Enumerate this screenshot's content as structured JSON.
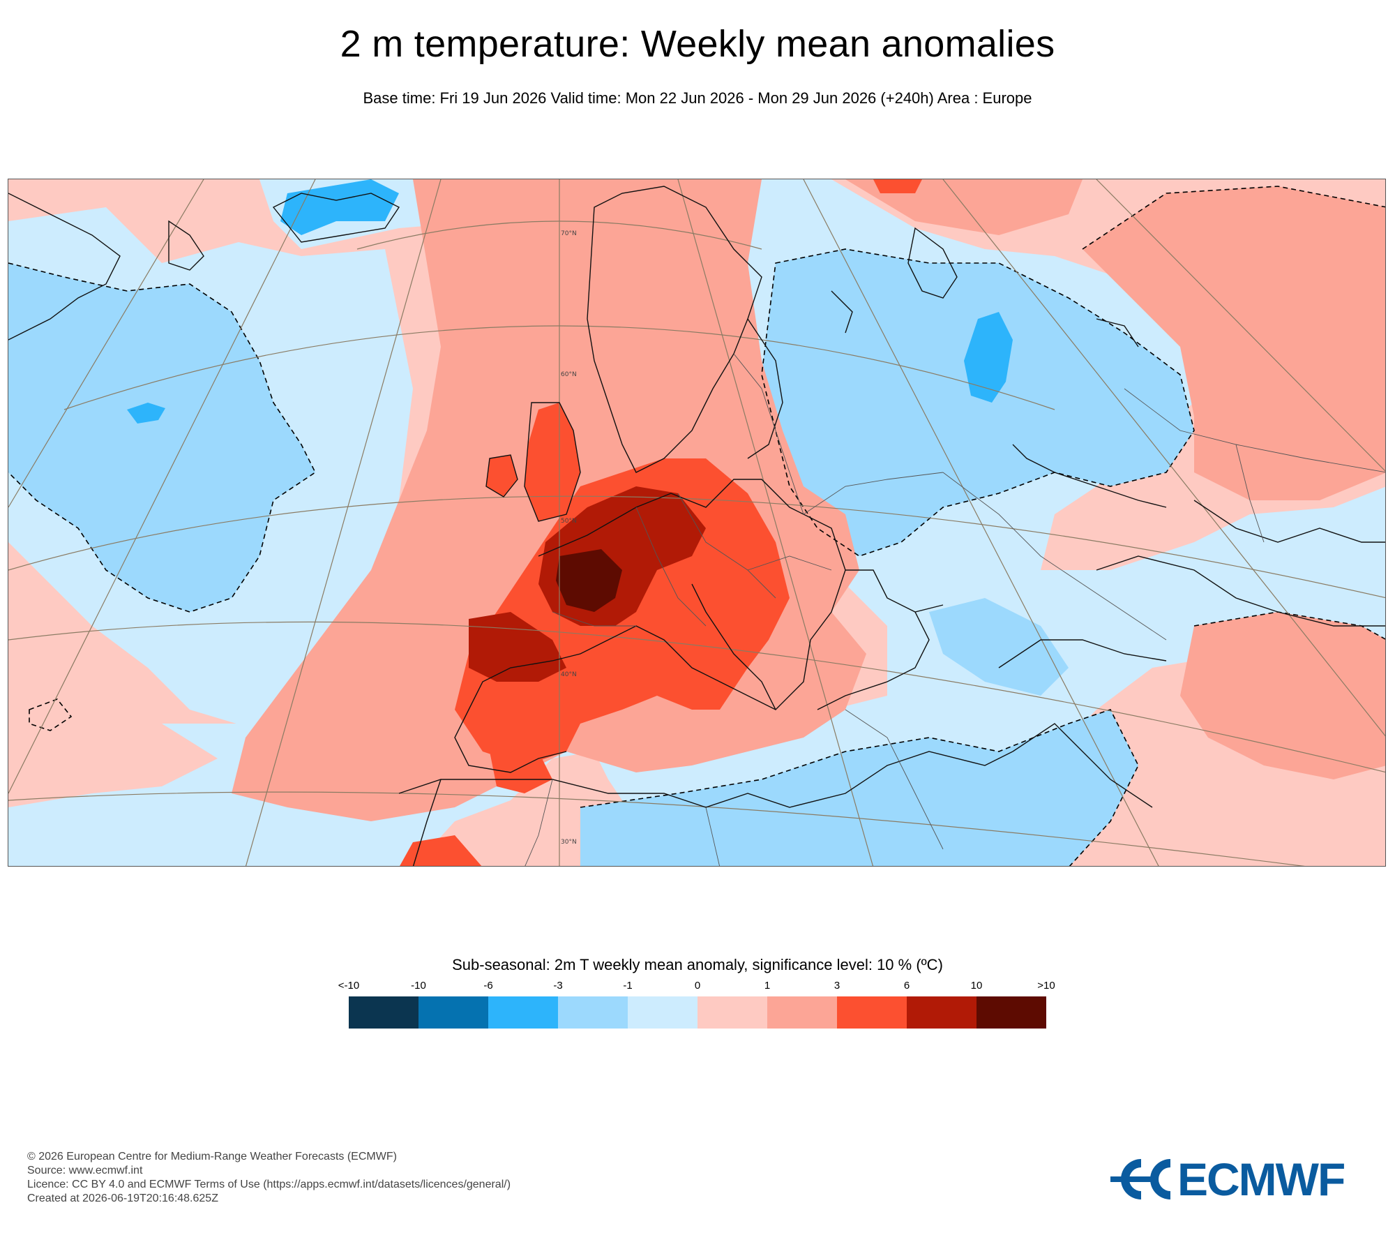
{
  "header": {
    "title": "2 m temperature: Weekly mean anomalies",
    "subtitle": "Base time: Fri 19 Jun 2026 Valid time: Mon 22 Jun 2026 - Mon 29 Jun 2026 (+240h) Area : Europe"
  },
  "map": {
    "area": "Europe",
    "lat_labels": [
      "70°N",
      "60°N",
      "50°N",
      "40°N",
      "30°N"
    ]
  },
  "legend": {
    "title": "Sub-seasonal: 2m T weekly mean anomaly, significance level: 10 % (ºC)",
    "ticks": [
      "<-10",
      "-10",
      "-6",
      "-3",
      "-1",
      "0",
      "1",
      "3",
      "6",
      "10",
      ">10"
    ],
    "colors": [
      "#0b3550",
      "#0572b0",
      "#2db4fb",
      "#9cd9fd",
      "#cdecfe",
      "#fecac2",
      "#fca596",
      "#fc5030",
      "#b11a06",
      "#5d0b01"
    ]
  },
  "footer": {
    "lines": [
      "© 2026 European Centre for Medium-Range Weather Forecasts (ECMWF)",
      "Source: www.ecmwf.int",
      "Licence: CC BY 4.0 and ECMWF Terms of Use (https://apps.ecmwf.int/datasets/licences/general/)",
      "Created at 2026-06-19T20:16:48.625Z"
    ],
    "logo_text": "ECMWF",
    "logo_color": "#0a5b9f"
  }
}
